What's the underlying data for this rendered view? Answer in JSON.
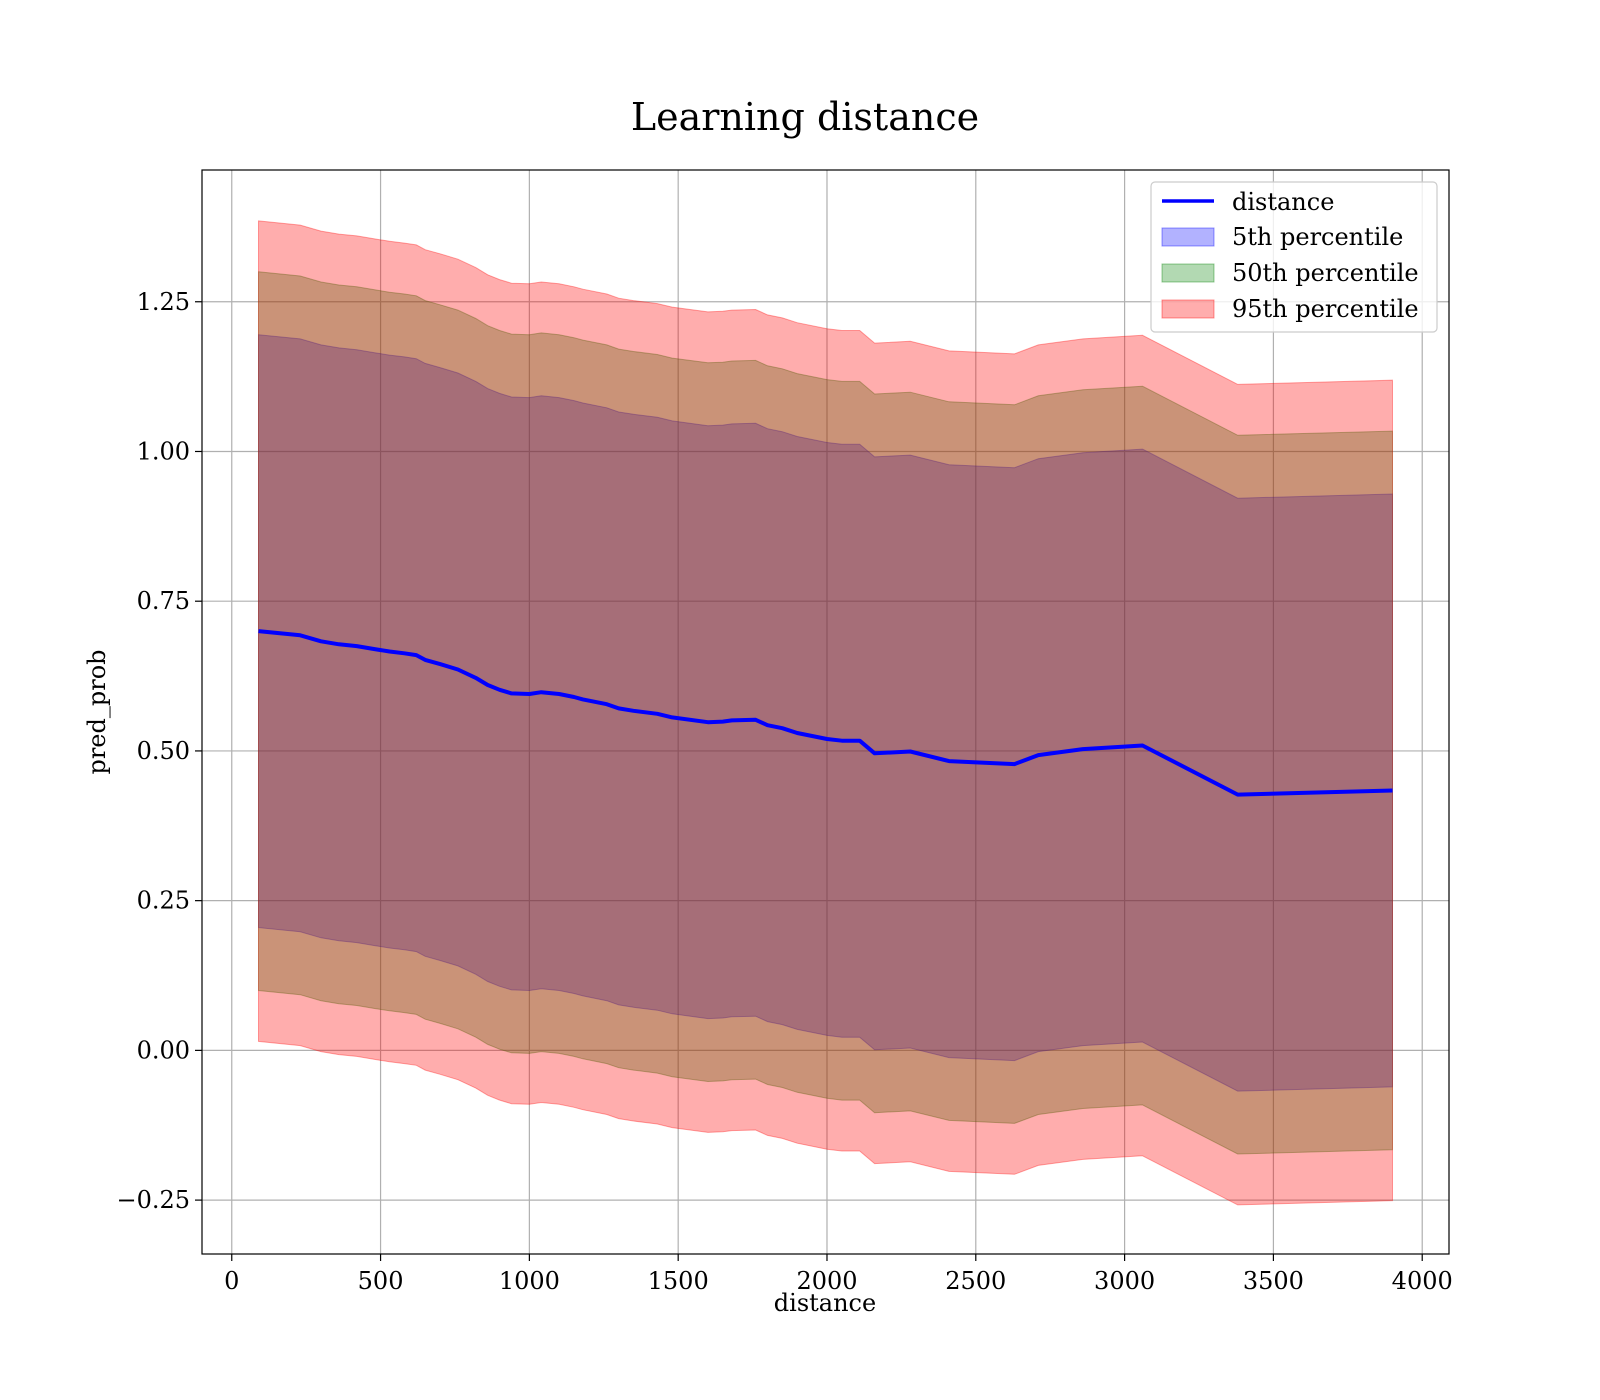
{
  "chart_data": {
    "type": "line",
    "title": "Learning distance",
    "xlabel": "distance",
    "ylabel": "pred_prob",
    "xlim": [
      -100,
      4090
    ],
    "ylim": [
      -0.34,
      1.47
    ],
    "x_ticks": [
      0,
      500,
      1000,
      1500,
      2000,
      2500,
      3000,
      3500,
      4000
    ],
    "x_tick_labels": [
      "0",
      "500",
      "1000",
      "1500",
      "2000",
      "2500",
      "3000",
      "3500",
      "4000"
    ],
    "y_ticks": [
      -0.25,
      0.0,
      0.25,
      0.5,
      0.75,
      1.0,
      1.25
    ],
    "y_tick_labels": [
      "−0.25",
      "0.00",
      "0.25",
      "0.50",
      "0.75",
      "1.00",
      "1.25"
    ],
    "grid": true,
    "legend_position": "top-right",
    "x": [
      90,
      230,
      300,
      360,
      420,
      480,
      530,
      580,
      620,
      650,
      700,
      760,
      820,
      860,
      900,
      940,
      1000,
      1040,
      1100,
      1150,
      1180,
      1260,
      1300,
      1350,
      1430,
      1480,
      1600,
      1650,
      1680,
      1760,
      1800,
      1850,
      1900,
      2000,
      2050,
      2110,
      2160,
      2280,
      2410,
      2630,
      2710,
      2860,
      3060,
      3380,
      3900
    ],
    "line": {
      "name": "distance",
      "color": "#0000ff",
      "values": [
        0.7,
        0.693,
        0.683,
        0.678,
        0.675,
        0.67,
        0.666,
        0.663,
        0.66,
        0.652,
        0.645,
        0.636,
        0.622,
        0.61,
        0.602,
        0.596,
        0.595,
        0.598,
        0.595,
        0.59,
        0.586,
        0.578,
        0.571,
        0.567,
        0.562,
        0.556,
        0.548,
        0.549,
        0.551,
        0.552,
        0.543,
        0.538,
        0.53,
        0.52,
        0.517,
        0.517,
        0.496,
        0.499,
        0.483,
        0.478,
        0.493,
        0.503,
        0.509,
        0.427,
        0.434
      ]
    },
    "bands": [
      {
        "name": "5th percentile",
        "color": "#0000ff",
        "opacity": 0.3,
        "offset": 0.495
      },
      {
        "name": "50th percentile",
        "color": "#008000",
        "opacity": 0.3,
        "offset": 0.6
      },
      {
        "name": "95th percentile",
        "color": "#ff0000",
        "opacity": 0.32,
        "offset": 0.685
      }
    ]
  }
}
